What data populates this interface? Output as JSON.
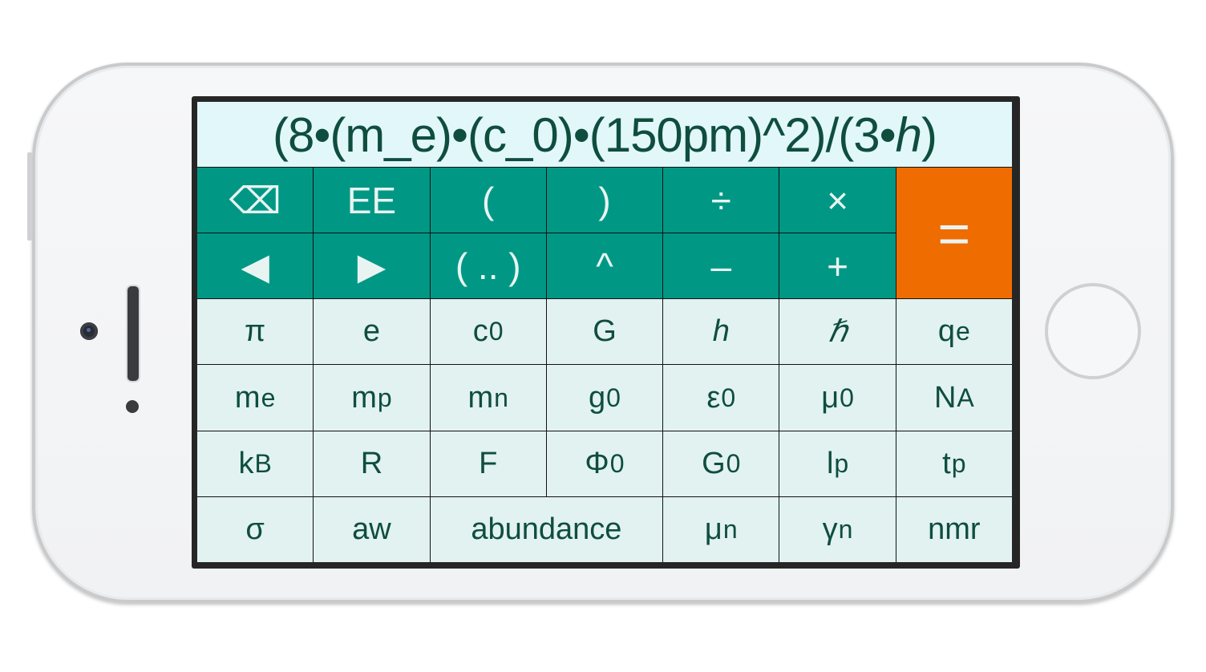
{
  "display": {
    "expression_prefix": "(8•(m_e)•(c_0)•(150pm)^2)/(3•",
    "expression_italic": "h",
    "expression_suffix": ")"
  },
  "colors": {
    "operator_key": "#009885",
    "equals_key": "#ef6c00",
    "constant_key": "#e1f2f1",
    "display_bg": "#e1f7f9",
    "text": "#0f4d3f"
  },
  "operator_keys": [
    {
      "label": "⌫",
      "icon": "backspace-icon"
    },
    {
      "label": "EE"
    },
    {
      "label": "("
    },
    {
      "label": ")"
    },
    {
      "label": "÷"
    },
    {
      "label": "×"
    },
    {
      "label": "◀",
      "icon": "left-arrow-icon"
    },
    {
      "label": "▶",
      "icon": "right-arrow-icon"
    },
    {
      "label": "( .. )"
    },
    {
      "label": "^"
    },
    {
      "label": "–"
    },
    {
      "label": "+"
    }
  ],
  "equals_label": "=",
  "constant_keys": [
    {
      "main": "π",
      "sub": ""
    },
    {
      "main": "e",
      "sub": ""
    },
    {
      "main": "c",
      "sub": "0"
    },
    {
      "main": "G",
      "sub": ""
    },
    {
      "main": "h",
      "sub": "",
      "italic": true
    },
    {
      "main": "ℏ",
      "sub": "",
      "italic": true
    },
    {
      "main": "q",
      "sub": "e"
    },
    {
      "main": "m",
      "sub": "e"
    },
    {
      "main": "m",
      "sub": "p"
    },
    {
      "main": "m",
      "sub": "n"
    },
    {
      "main": "g",
      "sub": "0"
    },
    {
      "main": "ε",
      "sub": "0"
    },
    {
      "main": "μ",
      "sub": "0"
    },
    {
      "main": "N",
      "sub": "A"
    },
    {
      "main": "k",
      "sub": "B"
    },
    {
      "main": "R",
      "sub": ""
    },
    {
      "main": "F",
      "sub": ""
    },
    {
      "main": "Φ",
      "sub": "0"
    },
    {
      "main": "G",
      "sub": "0"
    },
    {
      "main": "l",
      "sub": "p"
    },
    {
      "main": "t",
      "sub": "p"
    },
    {
      "main": "σ",
      "sub": ""
    },
    {
      "main": "aw",
      "sub": ""
    },
    {
      "main": "abundance",
      "sub": "",
      "wide": true
    },
    {
      "main": "μ",
      "sub": "n"
    },
    {
      "main": "γ",
      "sub": "n"
    },
    {
      "main": "nmr",
      "sub": ""
    }
  ]
}
